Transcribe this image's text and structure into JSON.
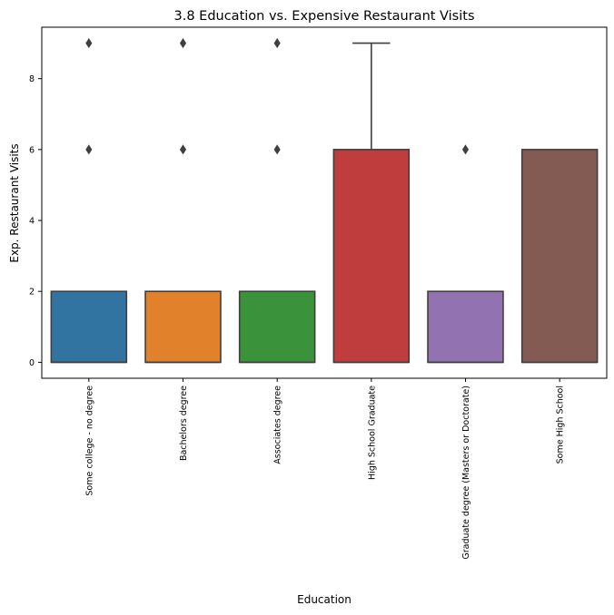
{
  "chart_data": {
    "type": "box",
    "title": "3.8 Education vs. Expensive Restaurant Visits",
    "xlabel": "Education",
    "ylabel": "Exp. Restaurant Visits",
    "ylim": [
      -0.45,
      9.45
    ],
    "yticks": [
      0,
      2,
      4,
      6,
      8
    ],
    "grid": false,
    "categories": [
      "Some college - no degree",
      "Bachelors degree",
      "Associates degree",
      "High School Graduate",
      "Graduate degree (Masters or Doctorate)",
      "Some High School"
    ],
    "boxes": [
      {
        "q1": 0,
        "median": 0,
        "q3": 2,
        "whisker_low": 0,
        "whisker_high": 2,
        "outliers": [
          6,
          9
        ],
        "color": "#3274a1"
      },
      {
        "q1": 0,
        "median": 0,
        "q3": 2,
        "whisker_low": 0,
        "whisker_high": 2,
        "outliers": [
          6,
          9
        ],
        "color": "#e1812c"
      },
      {
        "q1": 0,
        "median": 0,
        "q3": 2,
        "whisker_low": 0,
        "whisker_high": 2,
        "outliers": [
          6,
          9
        ],
        "color": "#3a923a"
      },
      {
        "q1": 0,
        "median": 0,
        "q3": 6,
        "whisker_low": 0,
        "whisker_high": 9,
        "outliers": [],
        "color": "#c03d3e"
      },
      {
        "q1": 0,
        "median": 0,
        "q3": 2,
        "whisker_low": 0,
        "whisker_high": 2,
        "outliers": [
          6
        ],
        "color": "#9372b2"
      },
      {
        "q1": 0,
        "median": 0,
        "q3": 6,
        "whisker_low": 0,
        "whisker_high": 6,
        "outliers": [],
        "color": "#845b53"
      }
    ],
    "line_color": "#3f3f3f"
  }
}
